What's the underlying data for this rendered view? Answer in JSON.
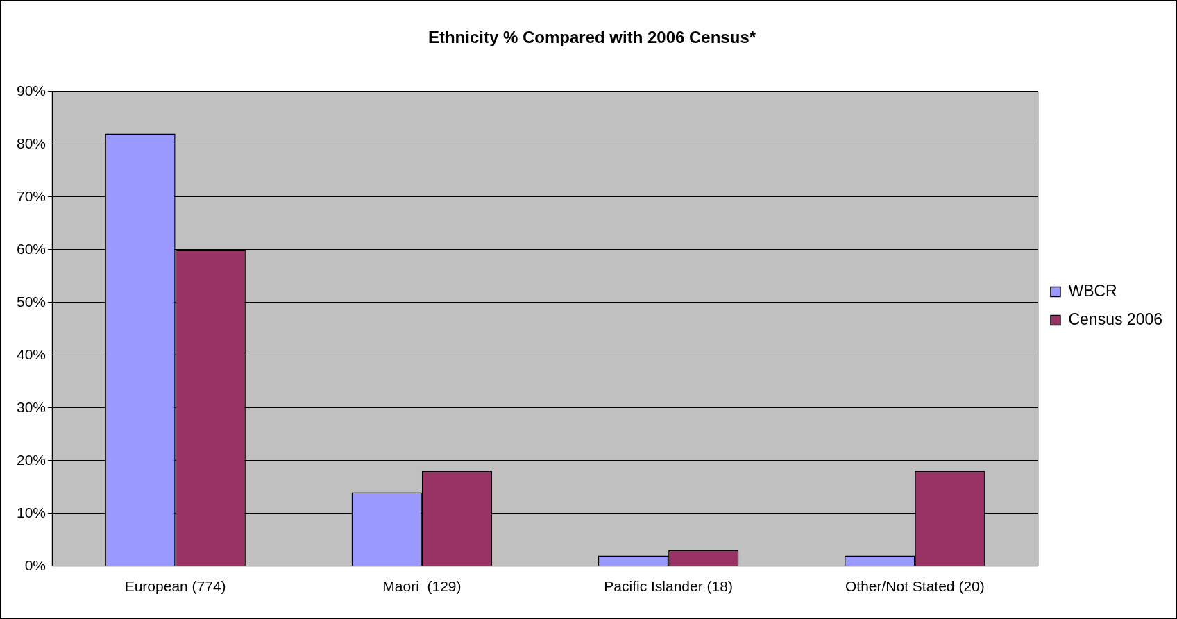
{
  "chart_data": {
    "type": "bar",
    "title": "Ethnicity % Compared with 2006 Census*",
    "categories": [
      "European (774)",
      "Maori  (129)",
      "Pacific Islander (18)",
      "Other/Not Stated (20)"
    ],
    "series": [
      {
        "name": "WBCR",
        "color": "#9999ff",
        "values": [
          82,
          14,
          2,
          2
        ]
      },
      {
        "name": "Census 2006",
        "color": "#993366",
        "values": [
          60,
          18,
          3,
          18
        ]
      }
    ],
    "ylim": [
      0,
      90
    ],
    "yticks": [
      {
        "value": 0,
        "label": "0%"
      },
      {
        "value": 10,
        "label": "10%"
      },
      {
        "value": 20,
        "label": "20%"
      },
      {
        "value": 30,
        "label": "30%"
      },
      {
        "value": 40,
        "label": "40%"
      },
      {
        "value": 50,
        "label": "50%"
      },
      {
        "value": 60,
        "label": "60%"
      },
      {
        "value": 70,
        "label": "70%"
      },
      {
        "value": 80,
        "label": "80%"
      },
      {
        "value": 90,
        "label": "90%"
      }
    ],
    "grid": "y",
    "legend": "right"
  }
}
